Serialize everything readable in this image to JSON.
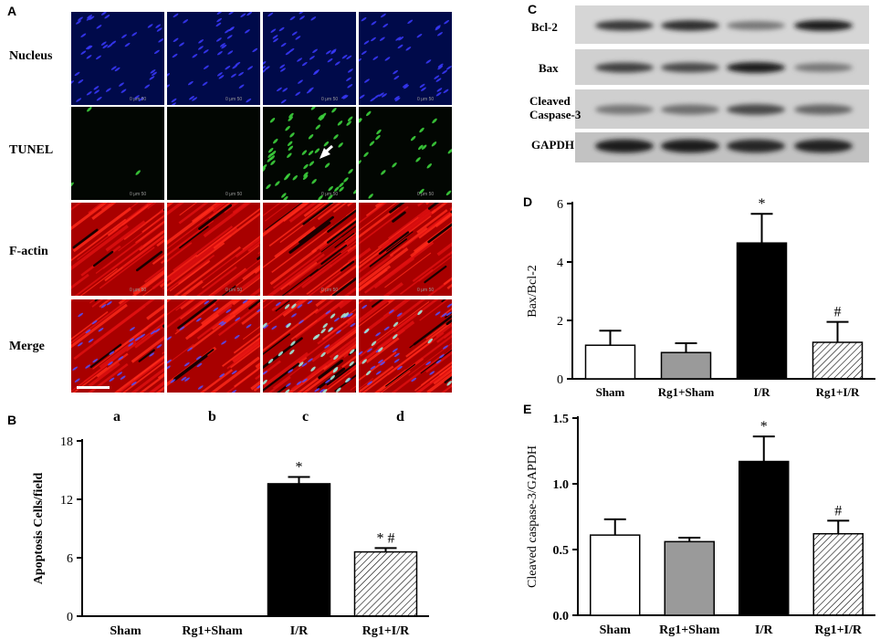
{
  "panels": {
    "A": "A",
    "B": "B",
    "C": "C",
    "D": "D",
    "E": "E"
  },
  "microscopy": {
    "rows": [
      "Nucleus",
      "TUNEL",
      "F-actin",
      "Merge"
    ],
    "columns": [
      "a",
      "b",
      "c",
      "d"
    ],
    "scale_text": "0  μm 50"
  },
  "western_blot": {
    "bands": [
      "Bcl-2",
      "Bax",
      "Cleaved Caspase-3",
      "GAPDH"
    ],
    "band_lines": [
      [
        "Bcl-2"
      ],
      [
        "Bax"
      ],
      [
        "Cleaved",
        "Caspase-3"
      ],
      [
        "GAPDH"
      ]
    ]
  },
  "chart_data": [
    {
      "id": "B",
      "type": "bar",
      "categories": [
        "Sham",
        "Rg1+Sham",
        "I/R",
        "Rg1+I/R"
      ],
      "values": [
        0,
        0,
        13.6,
        6.6
      ],
      "errors": [
        0,
        0,
        0.7,
        0.4
      ],
      "annotations": [
        "",
        "",
        "*",
        "* #"
      ],
      "xlabel": "",
      "ylabel": "Apoptosis Cells/field",
      "ylim": [
        0,
        18
      ],
      "yticks": [
        "0",
        "6",
        "12",
        "18"
      ],
      "bar_fills": [
        "white",
        "gray",
        "black",
        "hatched"
      ]
    },
    {
      "id": "D",
      "type": "bar",
      "categories": [
        "Sham",
        "Rg1+Sham",
        "I/R",
        "Rg1+I/R"
      ],
      "values": [
        1.15,
        0.9,
        4.65,
        1.25
      ],
      "errors": [
        0.5,
        0.32,
        1.0,
        0.7
      ],
      "annotations": [
        "",
        "",
        "*",
        "#"
      ],
      "xlabel": "",
      "ylabel": "Bax/Bcl-2",
      "ylim": [
        0,
        6
      ],
      "yticks": [
        "0",
        "2",
        "4",
        "6"
      ],
      "bar_fills": [
        "white",
        "gray",
        "black",
        "hatched"
      ]
    },
    {
      "id": "E",
      "type": "bar",
      "categories": [
        "Sham",
        "Rg1+Sham",
        "I/R",
        "Rg1+I/R"
      ],
      "values": [
        0.61,
        0.56,
        1.17,
        0.62
      ],
      "errors": [
        0.12,
        0.03,
        0.19,
        0.1
      ],
      "annotations": [
        "",
        "",
        "*",
        "#"
      ],
      "xlabel": "",
      "ylabel": "Cleaved caspase-3/GAPDH",
      "ylim": [
        0,
        1.5
      ],
      "yticks": [
        "0.0",
        "0.5",
        "1.0",
        "1.5"
      ],
      "bar_fills": [
        "white",
        "gray",
        "black",
        "hatched"
      ]
    }
  ]
}
